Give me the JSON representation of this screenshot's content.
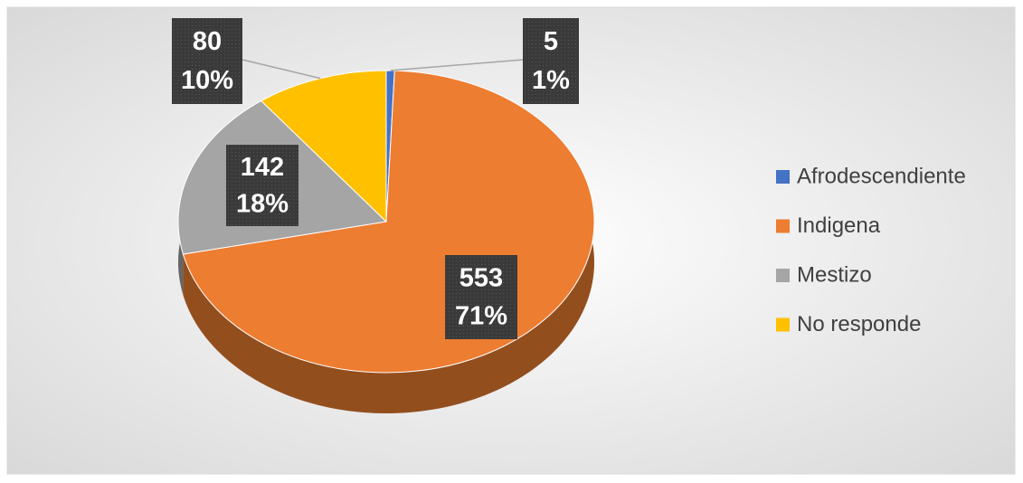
{
  "chart_data": {
    "type": "pie",
    "categories": [
      "Afrodescendiente",
      "Indigena",
      "Mestizo",
      "No responde"
    ],
    "values": [
      5,
      553,
      142,
      80
    ],
    "percent_labels": [
      "1%",
      "71%",
      "18%",
      "10%"
    ],
    "colors": [
      "#4472c4",
      "#ed7d31",
      "#a5a5a5",
      "#ffc000"
    ],
    "legend": "right"
  }
}
